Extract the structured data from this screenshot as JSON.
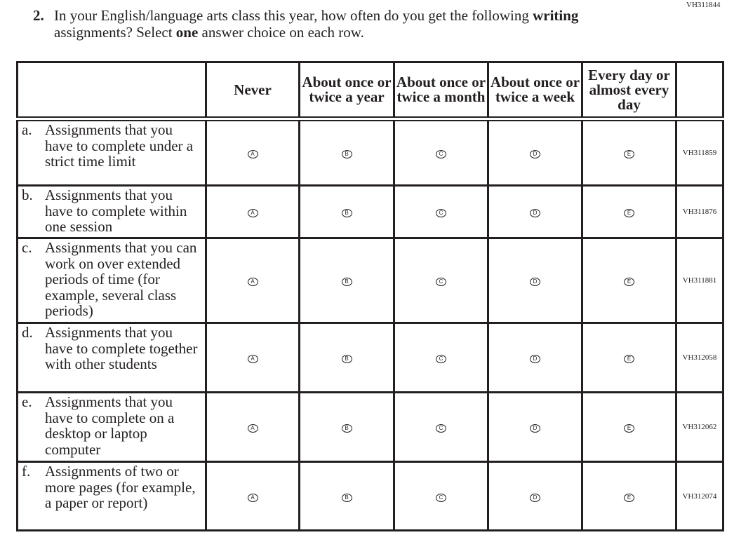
{
  "item_id": "VH311844",
  "question": {
    "number": "2.",
    "text_parts": [
      "In your English/language arts class this year, how often do you get the following ",
      "writing",
      " assignments? Select ",
      "one",
      " answer choice on each row."
    ]
  },
  "columns": [
    "Never",
    "About once or twice a year",
    "About once or twice a month",
    "About once or twice a week",
    "Every day or almost every day"
  ],
  "choice_letters": [
    "A",
    "B",
    "C",
    "D",
    "E"
  ],
  "rows": [
    {
      "letter": "a.",
      "text": "Assignments that you have to complete under a strict time limit",
      "code": "VH311859"
    },
    {
      "letter": "b.",
      "text": "Assignments that you have to complete within one session",
      "code": "VH311876"
    },
    {
      "letter": "c.",
      "text": "Assignments that you can work on over extended periods of time (for example, several class periods)",
      "code": "VH311881"
    },
    {
      "letter": "d.",
      "text": "Assignments that you have to complete together with other students",
      "code": "VH312058"
    },
    {
      "letter": "e.",
      "text": "Assignments that you have to complete on a desktop or laptop computer",
      "code": "VH312062"
    },
    {
      "letter": "f.",
      "text": "Assignments of two or more pages (for example, a paper or report)",
      "code": "VH312074"
    }
  ]
}
